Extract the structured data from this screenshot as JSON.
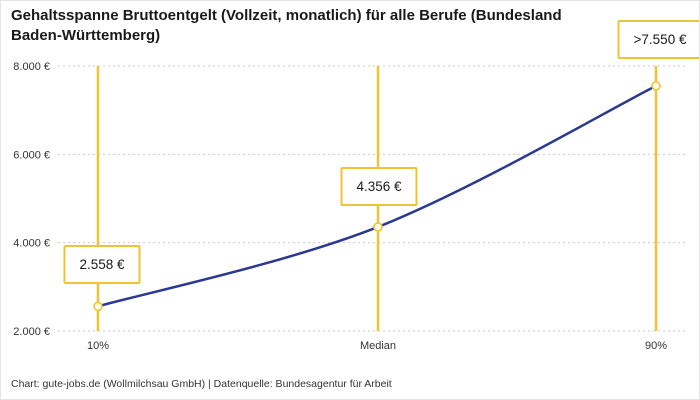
{
  "colors": {
    "accent": "#f1c232",
    "line": "#2b3a8f",
    "grid": "#c9c9c9",
    "text": "#1a1a1a",
    "axis_text": "#333333",
    "marker_fill": "#fffdf0"
  },
  "chart_data": {
    "type": "line",
    "title": "Gehaltsspanne Bruttoentgelt (Vollzeit, monatlich) für alle Berufe (Bundesland Baden-Württemberg)",
    "categories": [
      "10%",
      "Median",
      "90%"
    ],
    "values": [
      2558,
      4356,
      7550
    ],
    "point_labels": [
      "2.558 €",
      "4.356 €",
      ">7.550 €"
    ],
    "ylim": [
      2000,
      8000
    ],
    "yticks": [
      2000,
      4000,
      6000,
      8000
    ],
    "ytick_labels": [
      "2.000 €",
      "4.000 €",
      "6.000 €",
      "8.000 €"
    ],
    "grid": "horizontal-dotted",
    "legend": "none",
    "annotations": "vertical gold marker line at each category with circular data-point marker and boxed value label",
    "source": "Chart: gute-jobs.de (Wollmilchsau GmbH) | Datenquelle: Bundesagentur für Arbeit"
  }
}
